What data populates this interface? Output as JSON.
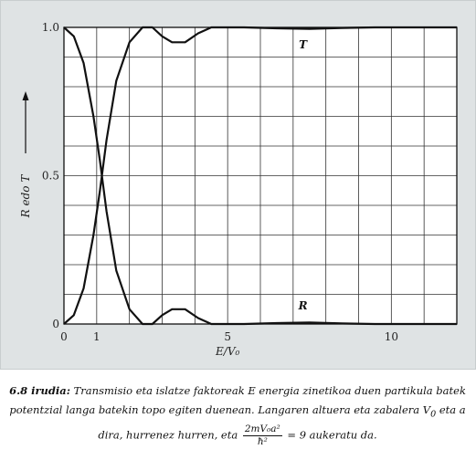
{
  "chart_data": {
    "type": "line",
    "xlabel": "E/V₀",
    "ylabel": "R edo T",
    "xlim": [
      0,
      12
    ],
    "ylim": [
      0,
      1
    ],
    "x_ticks": [
      "0",
      "1",
      "5",
      "10"
    ],
    "x_tick_values": [
      0,
      1,
      5,
      10
    ],
    "y_ticks": [
      "0",
      "0.5",
      "1.0"
    ],
    "y_tick_values": [
      0,
      0.5,
      1.0
    ],
    "grid": true,
    "series": [
      {
        "name": "T",
        "x": [
          0,
          0.3,
          0.6,
          0.9,
          1.1,
          1.3,
          1.6,
          2.0,
          2.4,
          2.7,
          3.0,
          3.3,
          3.7,
          4.1,
          4.5,
          4.9,
          5.5,
          6.5,
          7.5,
          8.5,
          9.5,
          10.5,
          12
        ],
        "y": [
          0,
          0.03,
          0.12,
          0.3,
          0.45,
          0.62,
          0.82,
          0.95,
          1.0,
          1.0,
          0.97,
          0.95,
          0.95,
          0.98,
          1.0,
          1.0,
          1.0,
          0.997,
          0.995,
          0.998,
          1.0,
          1.0,
          1.0
        ]
      },
      {
        "name": "R",
        "x": [
          0,
          0.3,
          0.6,
          0.9,
          1.1,
          1.3,
          1.6,
          2.0,
          2.4,
          2.7,
          3.0,
          3.3,
          3.7,
          4.1,
          4.5,
          4.9,
          5.5,
          6.5,
          7.5,
          8.5,
          9.5,
          10.5,
          12
        ],
        "y": [
          1.0,
          0.97,
          0.88,
          0.7,
          0.55,
          0.38,
          0.18,
          0.05,
          0.0,
          0.0,
          0.03,
          0.05,
          0.05,
          0.02,
          0.0,
          0.0,
          0.0,
          0.003,
          0.005,
          0.002,
          0.0,
          0.0,
          0.0
        ]
      }
    ]
  },
  "caption": {
    "lead": "6.8 irudia:",
    "text1": " Transmisio eta islatze faktoreak E energia zinetikoa duen partikula batek potentzial langa batekin topo egiten duenean. Langaren altuera eta zabalera V",
    "sub0": "0",
    "text2": " eta a dira, hurrenez hurren, eta ",
    "frac_num": "2mV₀a²",
    "frac_den": "ħ²",
    "text3": " = 9 aukeratu da."
  }
}
